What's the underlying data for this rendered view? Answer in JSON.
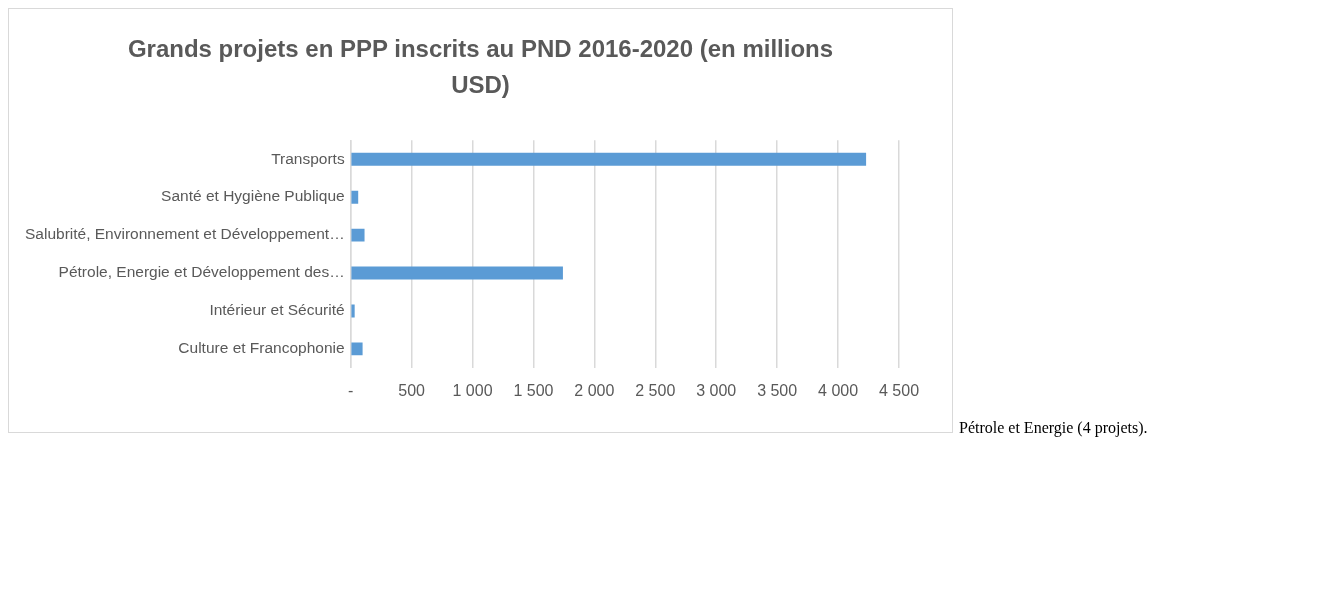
{
  "chart_data": {
    "type": "bar",
    "orientation": "horizontal",
    "title": "Grands projets en PPP inscrits au PND 2016-2020 (en millions USD)",
    "categories": [
      "Transports",
      "Santé et Hygiène Publique",
      "Salubrité, Environnement et Développement…",
      "Pétrole, Energie et Développement des…",
      "Intérieur et Sécurité",
      "Culture et Francophonie"
    ],
    "values": [
      4230,
      62,
      114,
      1742,
      33,
      98
    ],
    "color": "#5b9bd5",
    "xlim": [
      0,
      4500
    ],
    "xticks": [
      {
        "value": 0,
        "label": "-"
      },
      500,
      {
        "value": 1000,
        "label": "1 000"
      },
      {
        "value": 1500,
        "label": "1 500"
      },
      {
        "value": 2000,
        "label": "2 000"
      },
      {
        "value": 2500,
        "label": "2 500"
      },
      {
        "value": 3000,
        "label": "3 000"
      },
      {
        "value": 3500,
        "label": "3 500"
      },
      {
        "value": 4000,
        "label": "4 000"
      },
      {
        "value": 4500,
        "label": "4 500"
      }
    ],
    "grid": "x",
    "annotations": [
      "Pétrole et Energie (4 projets)."
    ]
  }
}
